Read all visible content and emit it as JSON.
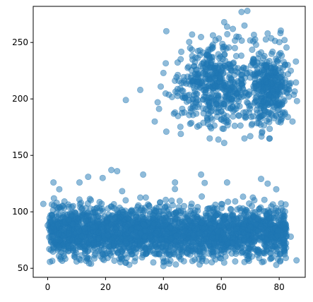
{
  "chart_data": {
    "type": "scatter",
    "title": "",
    "xlabel": "",
    "ylabel": "",
    "xlim": [
      -5,
      89
    ],
    "ylim": [
      42,
      282
    ],
    "xticks": [
      0,
      20,
      40,
      60,
      80
    ],
    "yticks": [
      50,
      100,
      150,
      200,
      250
    ],
    "grid": false,
    "marker": {
      "color": "#1f77b4",
      "alpha": 0.5,
      "shape": "circle"
    },
    "series": [
      {
        "values": [
          [
            -1.5,
            107
          ],
          [
            1,
            78
          ],
          [
            1,
            97
          ],
          [
            0,
            88
          ],
          [
            2,
            126
          ],
          [
            4,
            120
          ],
          [
            27,
            199
          ],
          [
            32,
            208
          ],
          [
            38,
            197
          ],
          [
            41,
            260
          ],
          [
            40,
            223
          ],
          [
            37,
            180
          ],
          [
            41,
            171
          ],
          [
            44,
            188
          ],
          [
            46,
            169
          ],
          [
            55,
            239
          ],
          [
            58,
            252
          ],
          [
            61,
            268
          ],
          [
            62,
            264
          ],
          [
            64,
            262
          ],
          [
            66,
            255
          ],
          [
            67,
            277
          ],
          [
            69,
            278
          ],
          [
            68,
            265
          ],
          [
            72,
            248
          ],
          [
            76,
            258
          ],
          [
            84,
            225
          ],
          [
            82,
            230
          ],
          [
            80,
            196
          ],
          [
            84,
            214
          ],
          [
            83,
            184
          ],
          [
            70,
            167
          ],
          [
            68,
            165
          ],
          [
            61,
            161
          ],
          [
            59,
            164
          ],
          [
            56,
            165
          ],
          [
            22,
            137
          ],
          [
            19,
            130
          ],
          [
            24,
            136
          ],
          [
            14,
            131
          ],
          [
            11,
            126
          ],
          [
            33,
            133
          ],
          [
            44,
            126
          ],
          [
            53,
            133
          ],
          [
            62,
            126
          ],
          [
            76,
            125
          ],
          [
            79,
            120
          ],
          [
            15,
            54
          ],
          [
            10,
            56
          ],
          [
            27,
            55
          ],
          [
            40,
            52
          ],
          [
            42,
            54
          ],
          [
            46,
            58
          ],
          [
            61,
            55
          ],
          [
            69,
            58
          ],
          [
            79,
            53
          ],
          [
            86,
            57
          ],
          [
            84,
            78
          ]
        ]
      }
    ]
  }
}
